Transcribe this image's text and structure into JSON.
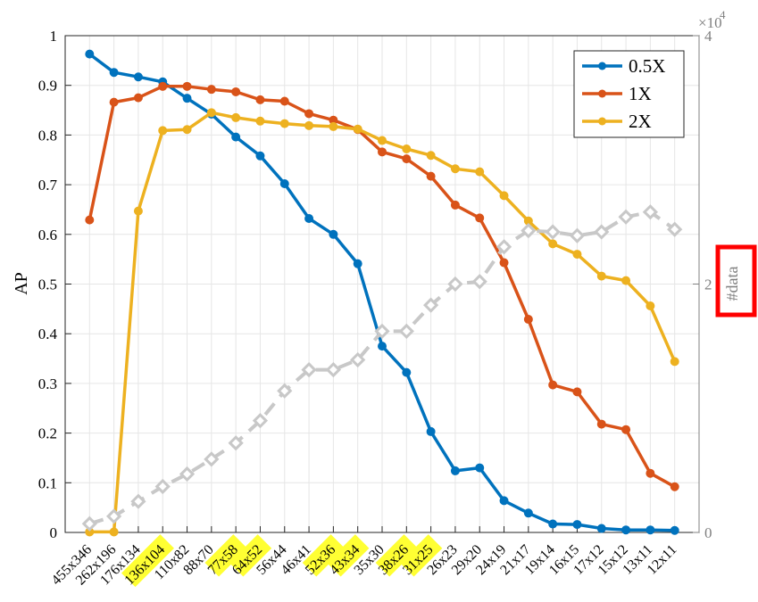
{
  "chart_data": {
    "type": "line",
    "categories": [
      "455x346",
      "262x196",
      "176x134",
      "136x104",
      "110x82",
      "88x70",
      "77x58",
      "64x52",
      "56x44",
      "46x41",
      "52x36",
      "43x34",
      "35x30",
      "38x26",
      "31x25",
      "26x23",
      "29x20",
      "24x19",
      "21x17",
      "19x14",
      "16x15",
      "17x12",
      "15x12",
      "13x11",
      "12x11"
    ],
    "highlighted_categories": [
      "136x104",
      "77x58",
      "64x52",
      "52x36",
      "43x34",
      "38x26",
      "31x25"
    ],
    "ylabel": "AP",
    "ylim": [
      0,
      1
    ],
    "yticks": [
      "0",
      "0.1",
      "0.2",
      "0.3",
      "0.4",
      "0.5",
      "0.6",
      "0.7",
      "0.8",
      "0.9",
      "1"
    ],
    "y2label": "#data",
    "y2lim": [
      0,
      40000
    ],
    "y2ticks": [
      "0",
      "2",
      "4"
    ],
    "y2_exponent_base": "×10",
    "y2_exponent": "4",
    "grid": true,
    "legend_position": "top-right",
    "series": [
      {
        "name": "0.5X",
        "color": "#0072BD",
        "axis": "left",
        "values": [
          0.963,
          0.926,
          0.917,
          0.907,
          0.874,
          0.842,
          0.796,
          0.758,
          0.702,
          0.632,
          0.6,
          0.541,
          0.375,
          0.322,
          0.203,
          0.124,
          0.13,
          0.064,
          0.039,
          0.017,
          0.016,
          0.008,
          0.005,
          0.005,
          0.004
        ]
      },
      {
        "name": "1X",
        "color": "#D95319",
        "axis": "left",
        "values": [
          0.629,
          0.866,
          0.875,
          0.898,
          0.898,
          0.892,
          0.887,
          0.871,
          0.868,
          0.843,
          0.83,
          0.811,
          0.766,
          0.752,
          0.717,
          0.659,
          0.633,
          0.543,
          0.429,
          0.297,
          0.283,
          0.218,
          0.207,
          0.119,
          0.092
        ]
      },
      {
        "name": "2X",
        "color": "#EDB120",
        "axis": "left",
        "values": [
          0.001,
          0.001,
          0.647,
          0.809,
          0.811,
          0.845,
          0.835,
          0.828,
          0.823,
          0.819,
          0.817,
          0.812,
          0.789,
          0.772,
          0.759,
          0.732,
          0.726,
          0.678,
          0.627,
          0.581,
          0.56,
          0.516,
          0.507,
          0.456,
          0.344
        ]
      },
      {
        "name": "#data",
        "color": "#C8C8C8",
        "axis": "right",
        "dashed": true,
        "values": [
          700,
          1300,
          2500,
          3700,
          4700,
          5900,
          7200,
          9000,
          11400,
          13100,
          13100,
          13900,
          16200,
          16200,
          18300,
          20000,
          20200,
          23000,
          24300,
          24200,
          23900,
          24200,
          25400,
          25800,
          24400
        ]
      }
    ]
  }
}
